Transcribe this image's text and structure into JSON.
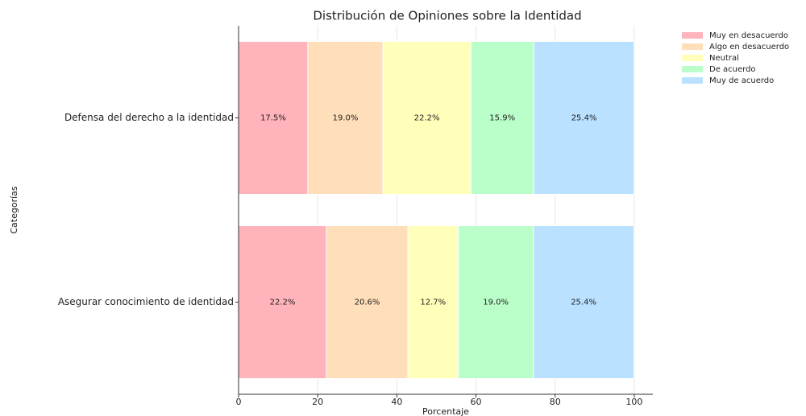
{
  "chart_data": {
    "type": "stacked-barh",
    "title": "Distribución de Opiniones sobre la Identidad",
    "xlabel": "Porcentaje",
    "ylabel": "Categorías",
    "categories": [
      "Defensa del derecho a la identidad",
      "Asegurar conocimiento de identidad"
    ],
    "series": [
      {
        "name": "Muy en desacuerdo",
        "color": "#ffb3ba",
        "values": [
          17.5,
          22.2
        ],
        "value_labels": [
          "17.5%",
          "22.2%"
        ]
      },
      {
        "name": "Algo en desacuerdo",
        "color": "#ffdfba",
        "values": [
          19.0,
          20.6
        ],
        "value_labels": [
          "19.0%",
          "20.6%"
        ]
      },
      {
        "name": "Neutral",
        "color": "#ffffba",
        "values": [
          22.2,
          12.7
        ],
        "value_labels": [
          "22.2%",
          "12.7%"
        ]
      },
      {
        "name": "De acuerdo",
        "color": "#baffc9",
        "values": [
          15.9,
          19.0
        ],
        "value_labels": [
          "15.9%",
          "19.0%"
        ]
      },
      {
        "name": "Muy de acuerdo",
        "color": "#bae1ff",
        "values": [
          25.4,
          25.4
        ],
        "value_labels": [
          "25.4%",
          "25.4%"
        ]
      }
    ],
    "xlim": [
      0,
      104.7
    ],
    "xticks": [
      0,
      20,
      40,
      60,
      80,
      100
    ],
    "grid": true,
    "legend": "upper right outside"
  }
}
